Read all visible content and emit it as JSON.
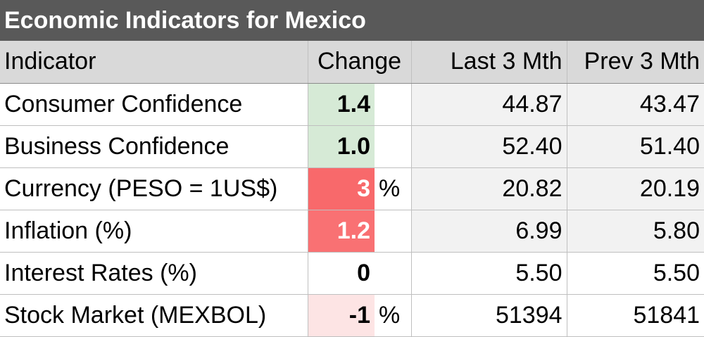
{
  "title": "Economic Indicators for Mexico",
  "headers": {
    "indicator": "Indicator",
    "change": "Change",
    "last": "Last 3 Mth",
    "prev": "Prev 3 Mth"
  },
  "rows": [
    {
      "indicator": "Consumer Confidence",
      "change": "1.4",
      "unit": "",
      "last": "44.87",
      "prev": "43.47",
      "change_bg": "#d6ead6",
      "change_color": "#000000",
      "values_bg": "#f2f2f2"
    },
    {
      "indicator": "Business Confidence",
      "change": "1.0",
      "unit": "",
      "last": "52.40",
      "prev": "51.40",
      "change_bg": "#d6ead6",
      "change_color": "#000000",
      "values_bg": "#f2f2f2"
    },
    {
      "indicator": "Currency (PESO = 1US$)",
      "change": "3",
      "unit": "%",
      "last": "20.82",
      "prev": "20.19",
      "change_bg": "#f8696b",
      "change_color": "#ffffff",
      "values_bg": "#f2f2f2"
    },
    {
      "indicator": "Inflation (%)",
      "change": "1.2",
      "unit": "",
      "last": "6.99",
      "prev": "5.80",
      "change_bg": "#f97173",
      "change_color": "#ffffff",
      "values_bg": "#f2f2f2"
    },
    {
      "indicator": "Interest Rates (%)",
      "change": "0",
      "unit": "",
      "last": "5.50",
      "prev": "5.50",
      "change_bg": "#ffffff",
      "change_color": "#000000",
      "values_bg": "#ffffff"
    },
    {
      "indicator": "Stock Market (MEXBOL)",
      "change": "-1",
      "unit": "%",
      "last": "51394",
      "prev": "51841",
      "change_bg": "#fde4e4",
      "change_color": "#000000",
      "values_bg": "#ffffff"
    }
  ]
}
